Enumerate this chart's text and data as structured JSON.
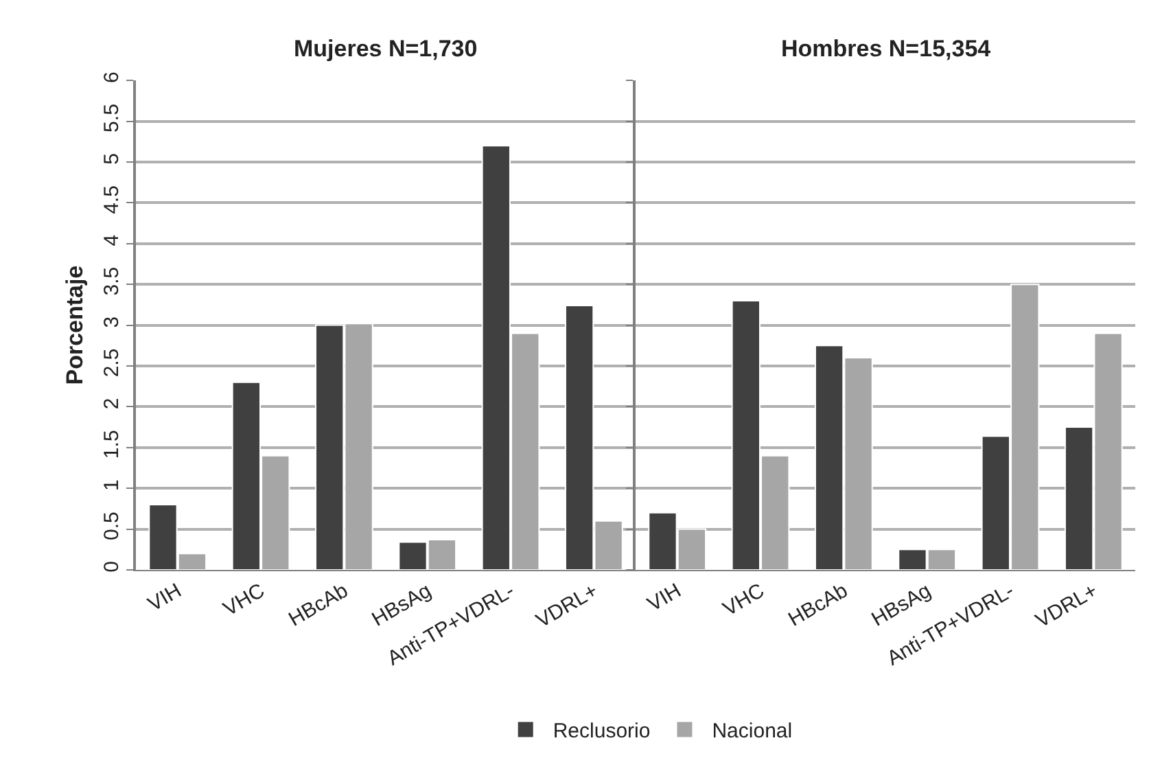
{
  "chart_data": [
    {
      "type": "bar",
      "title": "Mujeres N=1,730",
      "ylabel": "Porcentaje",
      "categories": [
        "VIH",
        "VHC",
        "HBcAb",
        "HBsAg",
        "Anti-TP+VDRL-",
        "VDRL+"
      ],
      "series": [
        {
          "name": "Reclusorio",
          "color": "#404040",
          "values": [
            0.8,
            2.3,
            3.0,
            0.34,
            5.2,
            3.24
          ]
        },
        {
          "name": "Nacional",
          "color": "#a6a6a6",
          "values": [
            0.2,
            1.4,
            3.02,
            0.37,
            2.9,
            0.6
          ]
        }
      ],
      "ylim": [
        0,
        6
      ],
      "yticks": [
        0,
        0.5,
        1,
        1.5,
        2,
        2.5,
        3,
        3.5,
        4,
        4.5,
        5,
        5.5,
        6
      ],
      "grid": "y",
      "legend": "bottom"
    },
    {
      "type": "bar",
      "title": "Hombres N=15,354",
      "categories": [
        "VIH",
        "VHC",
        "HBcAb",
        "HBsAg",
        "Anti-TP+VDRL-",
        "VDRL+"
      ],
      "series": [
        {
          "color": "#404040",
          "values": [
            0.7,
            3.3,
            2.75,
            0.25,
            1.64,
            1.75
          ]
        },
        {
          "color": "#a6a6a6",
          "values": [
            0.5,
            1.4,
            2.6,
            0.25,
            3.5,
            2.9
          ]
        }
      ],
      "ylim": [
        0,
        6
      ],
      "yticks": [
        0,
        0.5,
        1,
        1.5,
        2,
        2.5,
        3,
        3.5,
        4,
        4.5,
        5,
        5.5,
        6
      ],
      "grid": "y",
      "tick_labels": "x"
    }
  ]
}
